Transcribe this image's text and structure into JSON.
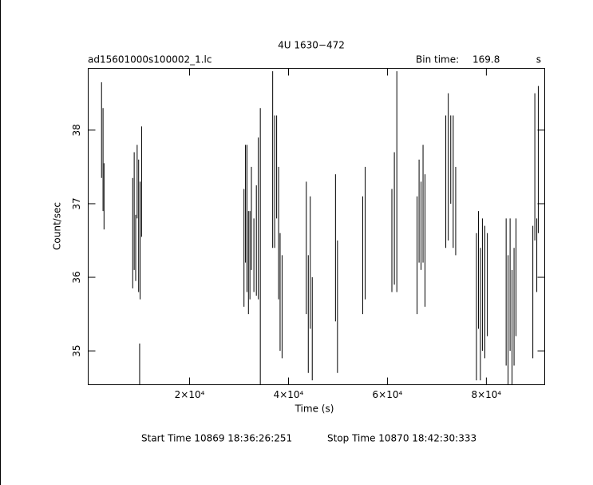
{
  "chart_data": {
    "type": "errorbar",
    "title": "4U 1630−472",
    "subtitle": "ad15601000s100002_1.lc",
    "bin_label": "Bin time:",
    "bin_time": 169.8,
    "bin_unit": "s",
    "xlabel": "Time (s)",
    "ylabel": "Count/sec",
    "footer_start": "Start Time 10869  18:36:26:251",
    "footer_stop": "Stop Time 10870  18:42:30:333",
    "color": "#000000",
    "xlim": [
      -500,
      91800
    ],
    "ylim": [
      34.54,
      38.84
    ],
    "xticks": [
      {
        "value": 20000,
        "label": "2×10⁴"
      },
      {
        "value": 40000,
        "label": "4×10⁴"
      },
      {
        "value": 60000,
        "label": "6×10⁴"
      },
      {
        "value": 80000,
        "label": "8×10⁴"
      }
    ],
    "yticks": [
      35,
      36,
      37,
      38
    ],
    "x": [
      2200,
      2500,
      2700,
      8500,
      8800,
      9100,
      9400,
      9700,
      9900,
      10000,
      10300,
      31000,
      31300,
      31600,
      31900,
      32200,
      32500,
      33000,
      33500,
      33900,
      34300,
      36800,
      37200,
      37600,
      38000,
      38300,
      38700,
      43600,
      44000,
      44400,
      44800,
      49500,
      49900,
      55000,
      55500,
      60900,
      61400,
      61900,
      66000,
      66400,
      66800,
      67200,
      67600,
      71800,
      72300,
      72800,
      73300,
      73800,
      78000,
      78400,
      78800,
      79200,
      79700,
      80200,
      84000,
      84400,
      84800,
      85200,
      85600,
      86000,
      89400,
      89800,
      90200,
      90500
    ],
    "values": [
      38.0,
      37.6,
      37.1,
      36.6,
      36.9,
      36.4,
      37.3,
      36.7,
      34.8,
      36.5,
      37.3,
      36.4,
      37.0,
      36.8,
      36.2,
      36.3,
      36.8,
      36.3,
      36.5,
      36.8,
      36.4,
      37.6,
      37.3,
      37.5,
      36.6,
      35.8,
      35.6,
      36.4,
      35.5,
      36.2,
      35.3,
      36.4,
      35.6,
      36.3,
      36.6,
      36.5,
      36.8,
      37.3,
      36.3,
      36.9,
      36.7,
      37.0,
      36.5,
      37.3,
      37.5,
      37.6,
      37.3,
      36.9,
      35.6,
      36.1,
      35.5,
      35.9,
      35.8,
      35.9,
      35.8,
      35.4,
      35.9,
      35.3,
      35.6,
      36.0,
      35.8,
      37.5,
      36.3,
      37.6
    ],
    "errors": [
      0.65,
      0.7,
      0.45,
      0.75,
      0.8,
      0.45,
      0.5,
      0.9,
      0.3,
      0.8,
      0.75,
      0.8,
      0.8,
      1.0,
      0.7,
      0.6,
      0.7,
      0.5,
      0.75,
      1.1,
      1.9,
      1.2,
      0.9,
      0.7,
      0.9,
      0.8,
      0.7,
      0.9,
      0.8,
      0.9,
      0.7,
      1.0,
      0.9,
      0.8,
      0.9,
      0.7,
      0.9,
      1.5,
      0.8,
      0.7,
      0.6,
      0.8,
      0.9,
      0.9,
      1.0,
      0.6,
      0.9,
      0.6,
      1.0,
      0.8,
      0.9,
      0.9,
      0.9,
      0.7,
      1.0,
      0.9,
      0.9,
      0.8,
      0.8,
      0.8,
      0.9,
      1.0,
      0.5,
      1.0
    ]
  }
}
